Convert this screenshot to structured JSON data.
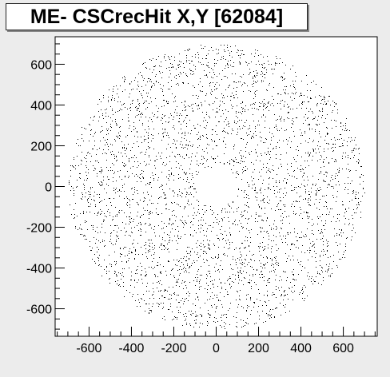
{
  "chart_data": {
    "type": "scatter",
    "title": "ME- CSCrecHit X,Y [62084]",
    "xlabel": "",
    "ylabel": "",
    "xlim": [
      -760,
      760
    ],
    "ylim": [
      -735,
      735
    ],
    "x_ticks": [
      -600,
      -400,
      -200,
      0,
      200,
      400,
      600
    ],
    "y_ticks": [
      600,
      400,
      200,
      0,
      -200,
      -400,
      -600
    ],
    "x_tick_labels": [
      "-600",
      "-400",
      "-200",
      "0",
      "200",
      "400",
      "600"
    ],
    "y_tick_labels": [
      "600",
      "400",
      "200",
      "0",
      "-200",
      "-400",
      "-600"
    ],
    "grid": false,
    "legend": "none",
    "marker_color": "#000000",
    "distribution": {
      "shape": "annulus",
      "center": [
        0,
        0
      ],
      "r_inner": 100,
      "r_outer": 700,
      "approx_points": 16000
    }
  }
}
